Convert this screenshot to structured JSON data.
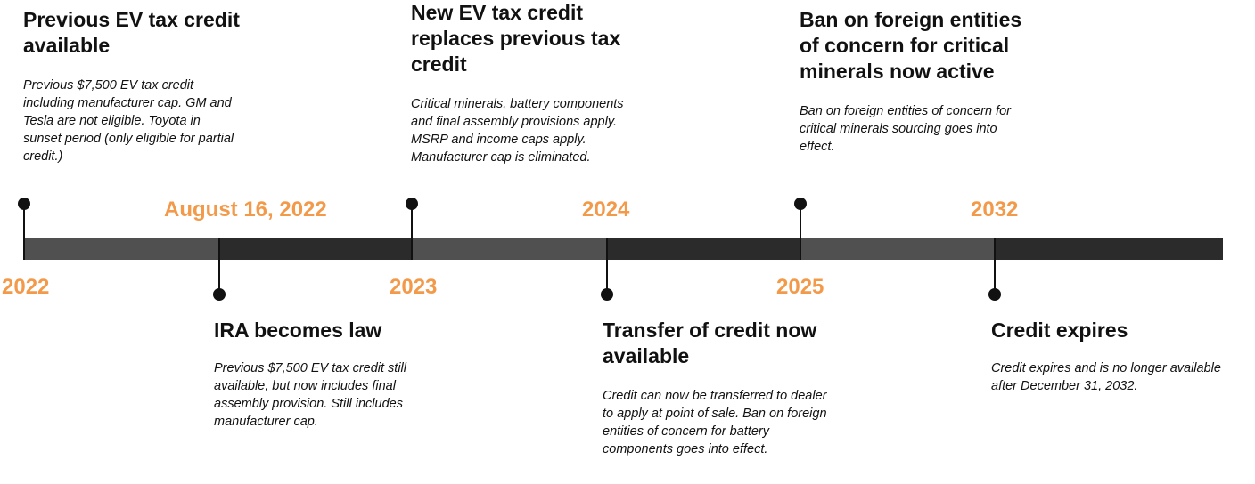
{
  "colors": {
    "accent": "#F39A4A",
    "segment_light": "#505050",
    "segment_dark": "#2b2b2b",
    "marker": "#111111"
  },
  "dates": {
    "d2022": "2022",
    "aug2022": "August 16, 2022",
    "d2023": "2023",
    "d2024": "2024",
    "d2025": "2025",
    "d2032": "2032"
  },
  "events": [
    {
      "title": "Previous EV tax credit available",
      "description": "Previous $7,500 EV tax credit including manufacturer cap. GM and Tesla are not eligible. Toyota in sunset period (only eligible for partial credit.)"
    },
    {
      "title": "IRA becomes law",
      "description": "Previous $7,500 EV tax credit still available, but now includes final assembly provision. Still includes manufacturer cap."
    },
    {
      "title": "New EV tax credit replaces previous tax credit",
      "description": "Critical minerals, battery components and final assembly provisions apply. MSRP and income caps apply. Manufacturer cap is eliminated."
    },
    {
      "title": "Transfer of credit now available",
      "description": "Credit can now be transferred to dealer to apply at point of sale. Ban on foreign entities of concern for battery components goes into effect."
    },
    {
      "title": "Ban on foreign entities of concern for critical minerals now active",
      "description": "Ban on foreign entities of concern for critical minerals sourcing goes into effect."
    },
    {
      "title": "Credit expires",
      "description": "Credit expires and is no longer available after December 31, 2032."
    }
  ]
}
